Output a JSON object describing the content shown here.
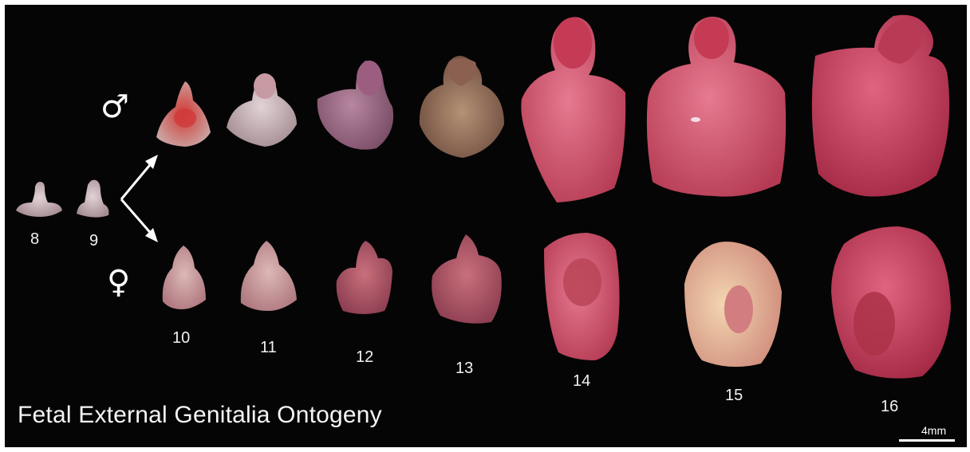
{
  "figure": {
    "title": "Fetal External Genitalia Ontogeny",
    "scale_label": "4mm",
    "male_symbol": "♂",
    "female_symbol": "♀",
    "stages": {
      "s8": "8",
      "s9": "9",
      "s10": "10",
      "s11": "11",
      "s12": "12",
      "s13": "13",
      "s14": "14",
      "s15": "15",
      "s16": "16"
    }
  },
  "colors": {
    "background": "#050505",
    "label": "#f2f2f2",
    "tissue_pale": "#c9b4b8",
    "tissue_pink": "#d8627a",
    "tissue_deep": "#c83a55"
  }
}
